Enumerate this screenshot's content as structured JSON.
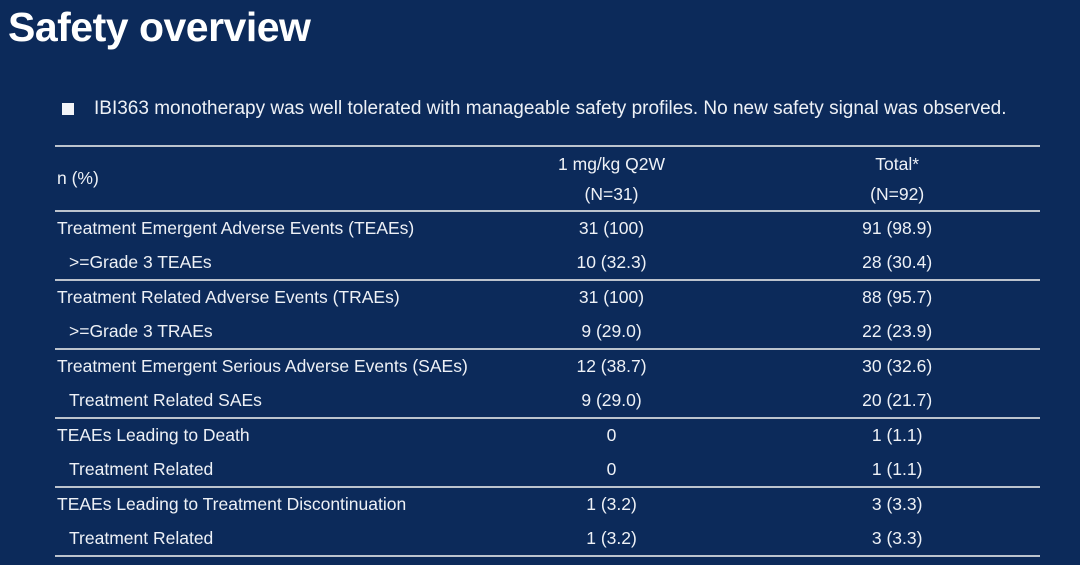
{
  "page": {
    "title": "Safety overview",
    "bullet": "IBI363 monotherapy was well tolerated with manageable safety profiles. No new safety signal was observed."
  },
  "colors": {
    "background": "#0c2a5a",
    "text": "#eef1f6",
    "title": "#ffffff",
    "line": "#bcc3cd"
  },
  "table": {
    "header": {
      "label": "n (%)",
      "col1_line1": "1 mg/kg Q2W",
      "col1_line2": "(N=31)",
      "col2_line1": "Total*",
      "col2_line2": "(N=92)"
    },
    "rows": [
      {
        "label": "Treatment Emergent Adverse Events (TEAEs)",
        "col1": "31 (100)",
        "col2": "91 (98.9)",
        "indent": false,
        "section_end": false
      },
      {
        "label": ">=Grade 3 TEAEs",
        "col1": "10 (32.3)",
        "col2": "28 (30.4)",
        "indent": true,
        "section_end": true
      },
      {
        "label": "Treatment Related Adverse Events (TRAEs)",
        "col1": "31 (100)",
        "col2": "88 (95.7)",
        "indent": false,
        "section_end": false
      },
      {
        "label": ">=Grade 3 TRAEs",
        "col1": "9 (29.0)",
        "col2": "22 (23.9)",
        "indent": true,
        "section_end": true
      },
      {
        "label": "Treatment Emergent Serious Adverse Events (SAEs)",
        "col1": "12 (38.7)",
        "col2": "30 (32.6)",
        "indent": false,
        "section_end": false
      },
      {
        "label": "Treatment Related SAEs",
        "col1": "9 (29.0)",
        "col2": "20 (21.7)",
        "indent": true,
        "section_end": true
      },
      {
        "label": "TEAEs Leading to Death",
        "col1": "0",
        "col2": "1 (1.1)",
        "indent": false,
        "section_end": false
      },
      {
        "label": "Treatment Related",
        "col1": "0",
        "col2": "1 (1.1)",
        "indent": true,
        "section_end": true
      },
      {
        "label": "TEAEs Leading to Treatment Discontinuation",
        "col1": "1 (3.2)",
        "col2": "3 (3.3)",
        "indent": false,
        "section_end": false
      },
      {
        "label": "Treatment Related",
        "col1": "1 (3.2)",
        "col2": "3 (3.3)",
        "indent": true,
        "section_end": true
      }
    ]
  }
}
